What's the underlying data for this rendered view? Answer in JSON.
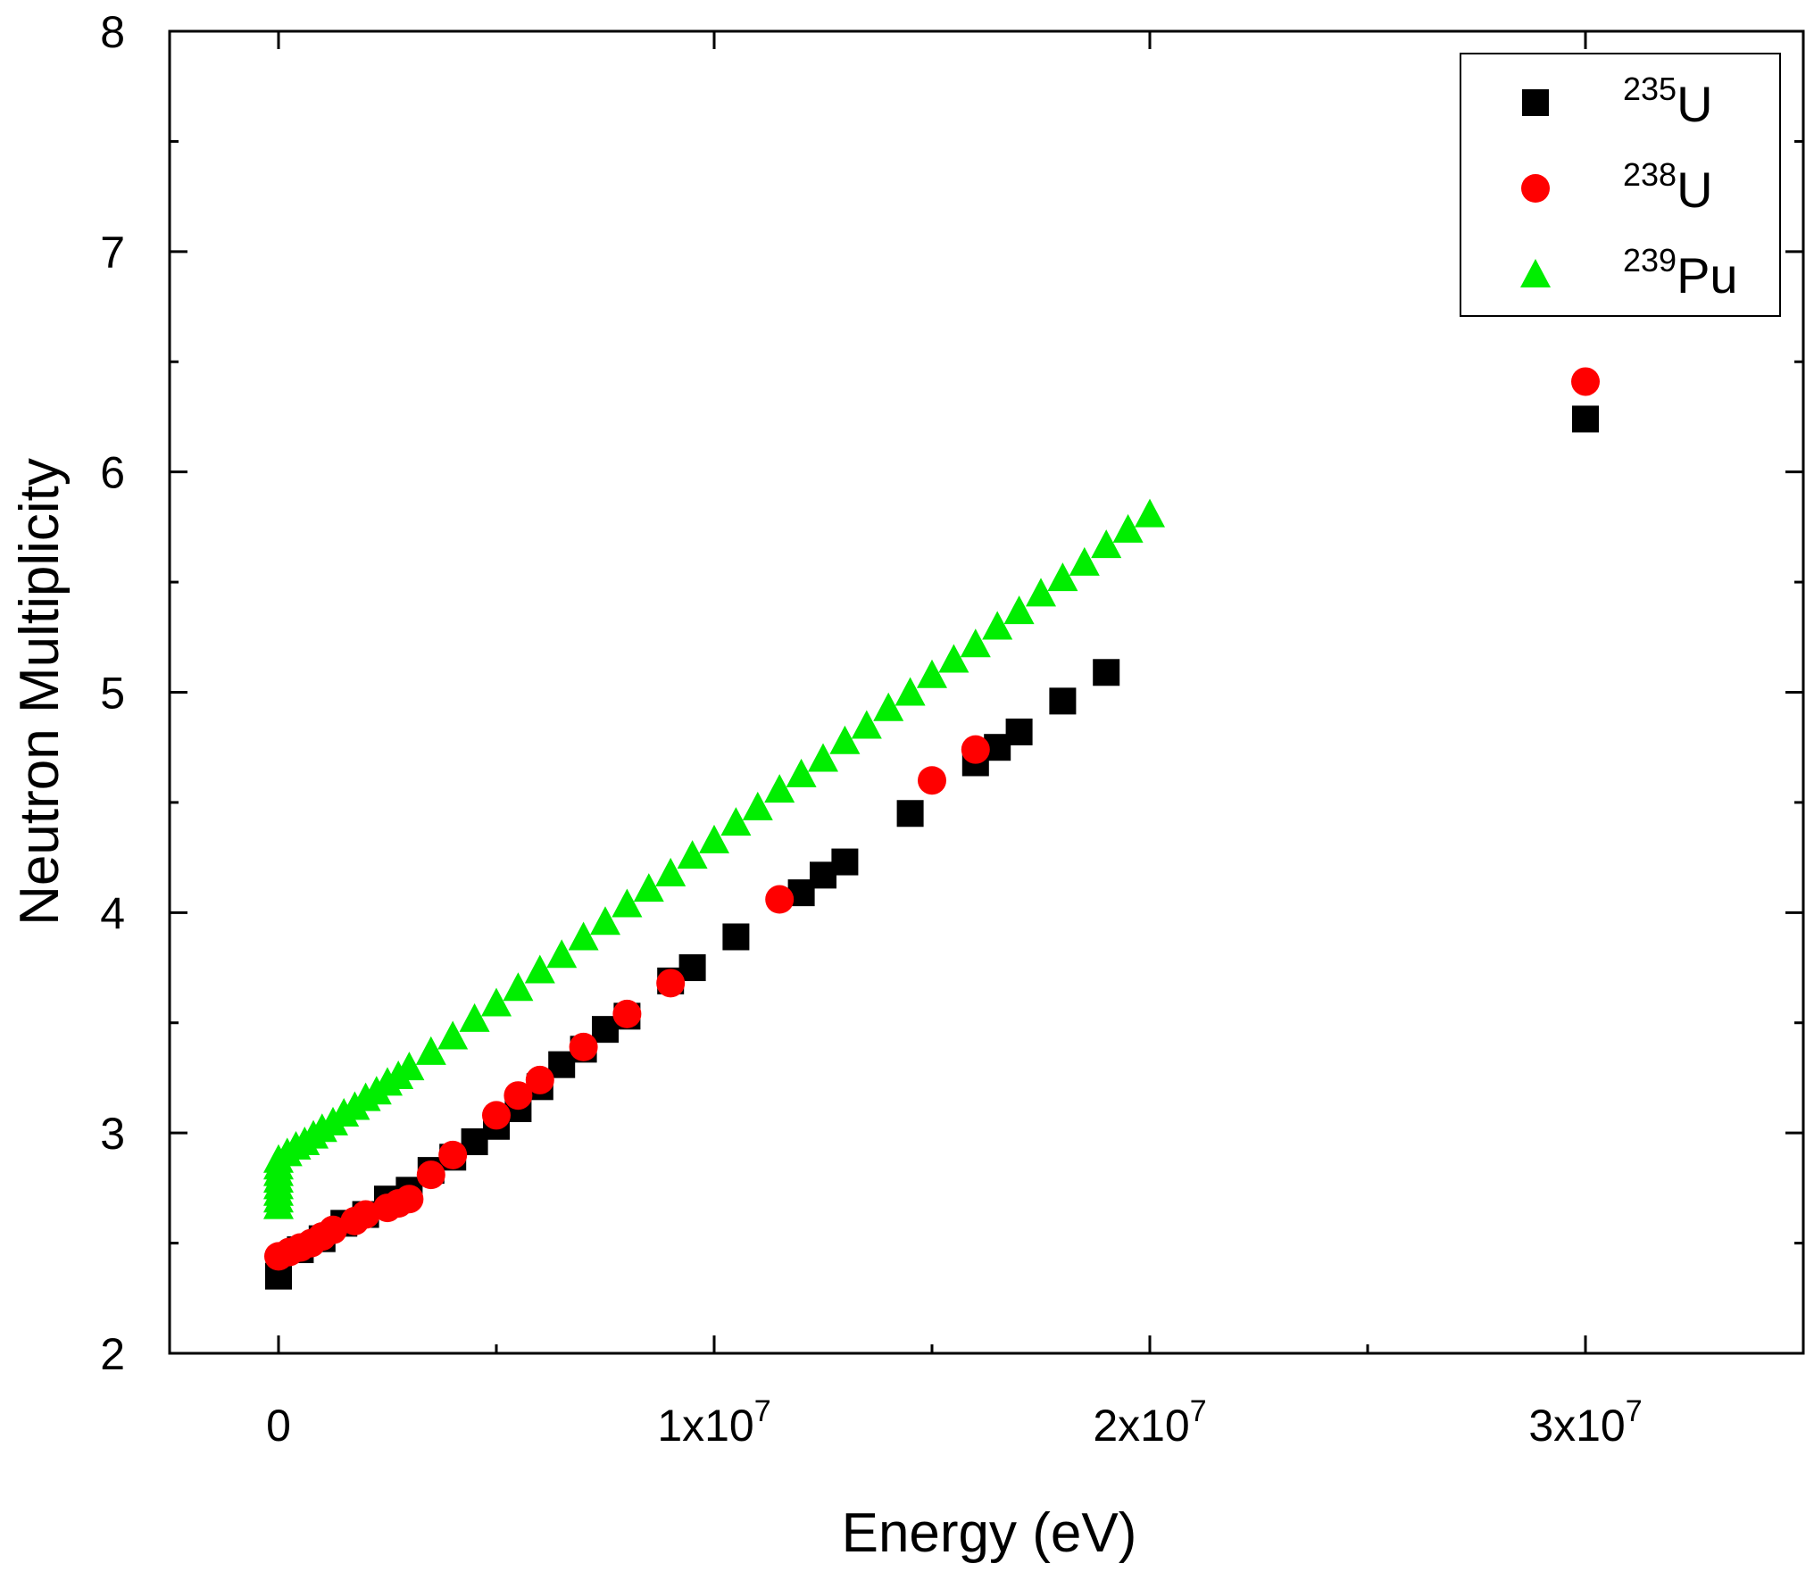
{
  "chart_data": {
    "type": "scatter",
    "title": "",
    "xlabel": "Energy (eV)",
    "ylabel": "Neutron Multiplicity",
    "xlim": [
      -2500000,
      35000000
    ],
    "ylim": [
      2,
      8
    ],
    "x_ticks": [
      {
        "value": 0,
        "mantissa": "0",
        "base": "",
        "exp": ""
      },
      {
        "value": 10000000,
        "mantissa": "1x10",
        "base": "",
        "exp": "7"
      },
      {
        "value": 20000000,
        "mantissa": "2x10",
        "base": "",
        "exp": "7"
      },
      {
        "value": 30000000,
        "mantissa": "3x10",
        "base": "",
        "exp": "7"
      }
    ],
    "y_ticks": [
      2,
      3,
      4,
      5,
      6,
      7,
      8
    ],
    "legend_position": "top-right",
    "series": [
      {
        "mass": "235",
        "element": "U",
        "marker": "square",
        "color": "#000000",
        "x": [
          0,
          500000,
          1000000,
          1500000,
          2000000,
          2500000,
          3000000,
          3500000,
          4000000,
          4500000,
          5000000,
          5500000,
          6000000,
          6500000,
          7000000,
          7500000,
          8000000,
          9000000,
          9500000,
          10500000,
          12000000,
          12500000,
          13000000,
          14500000,
          16000000,
          16500000,
          17000000,
          18000000,
          19000000,
          30000000
        ],
        "y": [
          2.35,
          2.47,
          2.52,
          2.59,
          2.63,
          2.7,
          2.74,
          2.83,
          2.89,
          2.96,
          3.03,
          3.11,
          3.21,
          3.31,
          3.38,
          3.47,
          3.53,
          3.69,
          3.75,
          3.89,
          4.09,
          4.17,
          4.23,
          4.45,
          4.68,
          4.75,
          4.82,
          4.96,
          5.09,
          6.24
        ]
      },
      {
        "mass": "238",
        "element": "U",
        "marker": "circle",
        "color": "#ff0000",
        "x": [
          0,
          250000,
          500000,
          750000,
          1000000,
          1250000,
          1750000,
          2000000,
          2500000,
          2750000,
          3000000,
          3500000,
          4000000,
          5000000,
          5500000,
          6000000,
          7000000,
          8000000,
          9000000,
          11500000,
          15000000,
          16000000,
          30000000
        ],
        "y": [
          2.44,
          2.46,
          2.48,
          2.5,
          2.53,
          2.56,
          2.6,
          2.63,
          2.66,
          2.68,
          2.7,
          2.81,
          2.9,
          3.08,
          3.17,
          3.24,
          3.39,
          3.54,
          3.68,
          4.06,
          4.6,
          4.74,
          6.41
        ]
      },
      {
        "mass": "239",
        "element": "Pu",
        "marker": "triangle",
        "color": "#00ee00",
        "x": [
          0,
          0,
          0,
          0,
          0,
          0,
          0,
          0,
          200000,
          400000,
          600000,
          800000,
          1000000,
          1250000,
          1500000,
          1750000,
          2000000,
          2250000,
          2500000,
          2750000,
          3000000,
          3500000,
          4000000,
          4500000,
          5000000,
          5500000,
          6000000,
          6500000,
          7000000,
          7500000,
          8000000,
          8500000,
          9000000,
          9500000,
          10000000,
          10500000,
          11000000,
          11500000,
          12000000,
          12500000,
          13000000,
          13500000,
          14000000,
          14500000,
          15000000,
          15500000,
          16000000,
          16500000,
          17000000,
          17500000,
          18000000,
          18500000,
          19000000,
          19500000,
          20000000
        ],
        "y": [
          2.67,
          2.7,
          2.73,
          2.76,
          2.79,
          2.82,
          2.85,
          2.88,
          2.91,
          2.94,
          2.96,
          2.99,
          3.02,
          3.05,
          3.09,
          3.12,
          3.16,
          3.19,
          3.23,
          3.26,
          3.3,
          3.37,
          3.44,
          3.52,
          3.59,
          3.66,
          3.74,
          3.81,
          3.89,
          3.96,
          4.04,
          4.11,
          4.18,
          4.26,
          4.33,
          4.41,
          4.48,
          4.56,
          4.63,
          4.7,
          4.78,
          4.85,
          4.93,
          5.0,
          5.08,
          5.15,
          5.22,
          5.3,
          5.37,
          5.45,
          5.52,
          5.59,
          5.67,
          5.74,
          5.81
        ]
      }
    ]
  }
}
